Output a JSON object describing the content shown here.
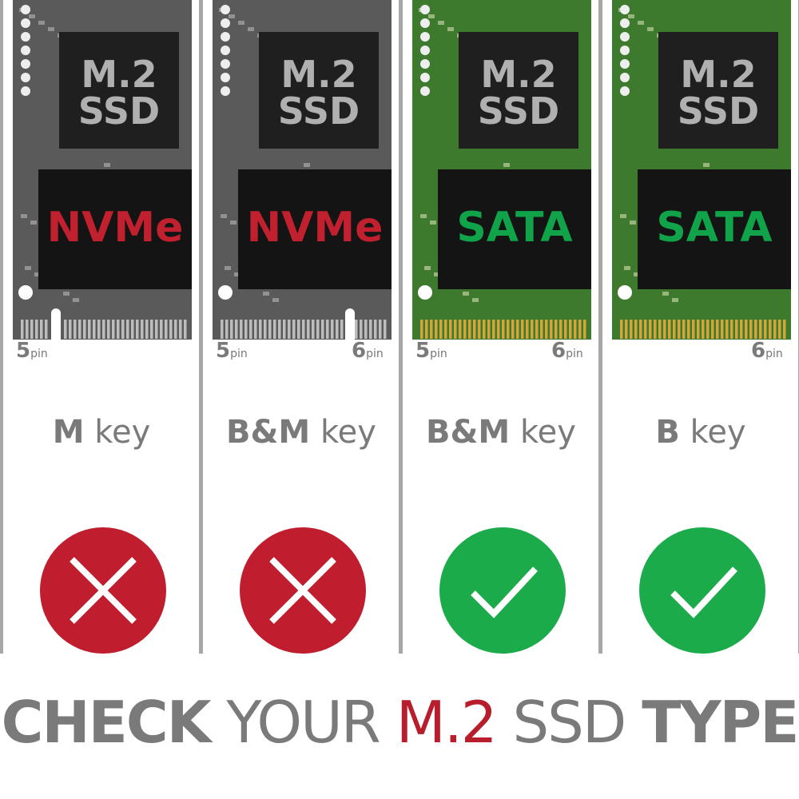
{
  "columns": [
    {
      "chip_top": "M.2",
      "chip_mid": "SSD",
      "interface": "NVMe",
      "pins_left": "5",
      "pins_right": "",
      "pin_unit": "pin",
      "key_bold": "M",
      "key_word": "key",
      "compatible": false,
      "board": "gray"
    },
    {
      "chip_top": "M.2",
      "chip_mid": "SSD",
      "interface": "NVMe",
      "pins_left": "5",
      "pins_right": "6",
      "pin_unit": "pin",
      "key_bold": "B&M",
      "key_word": "key",
      "compatible": false,
      "board": "gray"
    },
    {
      "chip_top": "M.2",
      "chip_mid": "SSD",
      "interface": "SATA",
      "pins_left": "5",
      "pins_right": "6",
      "pin_unit": "pin",
      "key_bold": "B&M",
      "key_word": "key",
      "compatible": true,
      "board": "green"
    },
    {
      "chip_top": "M.2",
      "chip_mid": "SSD",
      "interface": "SATA",
      "pins_left": "",
      "pins_right": "6",
      "pin_unit": "pin",
      "key_bold": "B",
      "key_word": "key",
      "compatible": true,
      "board": "green"
    }
  ],
  "title": {
    "part1": "CHECK",
    "part2": "YOUR",
    "part3": "M.2",
    "part4": "SSD",
    "part5": "TYPE"
  },
  "colors": {
    "nvme": "#c1202f",
    "sata": "#10a34a",
    "cross_circle": "#c01e2e",
    "check_circle": "#1bab4b",
    "gray_board": "#5a5a5a",
    "green_board": "#3d7a2e",
    "text_gray": "#7a7a7a",
    "accent_red": "#b81d2b"
  }
}
